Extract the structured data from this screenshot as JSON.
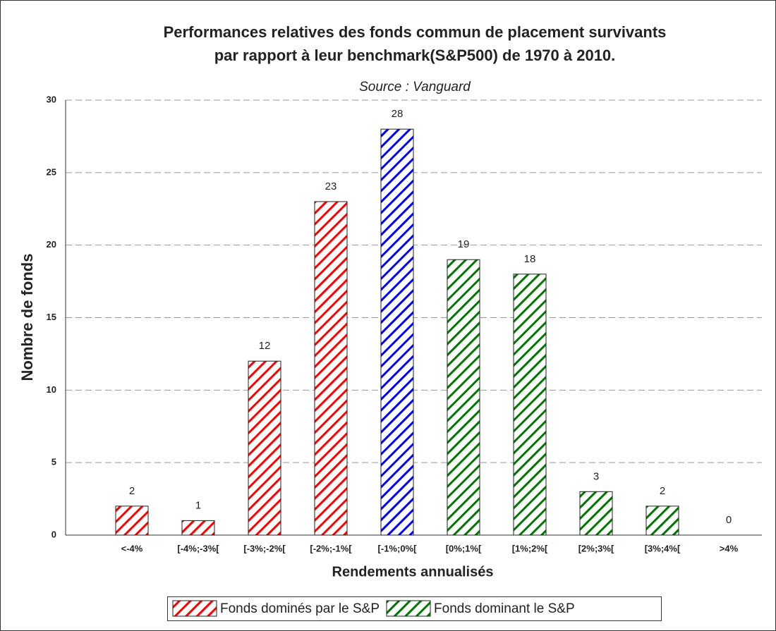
{
  "chart_data": {
    "type": "bar",
    "title": [
      "Performances relatives des fonds commun de placement survivants",
      "par rapport à leur benchmark(S&P500) de 1970 à 2010."
    ],
    "subtitle": "Source : Vanguard",
    "xlabel": "Rendements annualisés",
    "ylabel": "Nombre de fonds",
    "categories": [
      "<-4%",
      "[-4%;-3%[",
      "[-3%;-2%[",
      "[-2%;-1%[",
      "[-1%;0%[",
      "[0%;1%[",
      "[1%;2%[",
      "[2%;3%[",
      "[3%;4%[",
      ">4%"
    ],
    "values": [
      2,
      1,
      12,
      23,
      28,
      19,
      18,
      3,
      2,
      0
    ],
    "colors": [
      "#ff0000",
      "#ff0000",
      "#ff0000",
      "#ff0000",
      "#0000ff",
      "#007700",
      "#007700",
      "#007700",
      "#007700",
      "#007700"
    ],
    "ylim": [
      0,
      30
    ],
    "yticks": [
      0,
      5,
      10,
      15,
      20,
      25,
      30
    ],
    "grid": true,
    "legend": [
      {
        "name": "Fonds dominés par le S&P",
        "color": "#ff0000"
      },
      {
        "name": "Fonds dominant le S&P",
        "color": "#007700"
      }
    ],
    "legend_position": "bottom"
  }
}
